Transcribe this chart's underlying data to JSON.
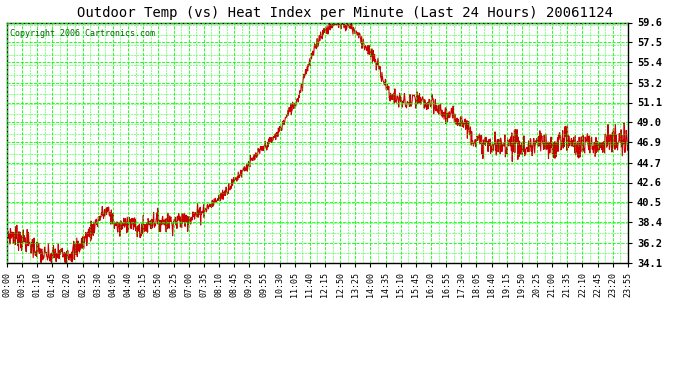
{
  "title": "Outdoor Temp (vs) Heat Index per Minute (Last 24 Hours) 20061124",
  "copyright": "Copyright 2006 Cartronics.com",
  "background_color": "#ffffff",
  "plot_bg_color": "#ffffff",
  "grid_color": "#00ff00",
  "line_color": "#cc0000",
  "text_color": "#000000",
  "ylim": [
    34.1,
    59.6
  ],
  "yticks": [
    34.1,
    36.2,
    38.4,
    40.5,
    42.6,
    44.7,
    46.9,
    49.0,
    51.1,
    53.2,
    55.4,
    57.5,
    59.6
  ],
  "x_labels": [
    "00:00",
    "00:35",
    "01:10",
    "01:45",
    "02:20",
    "02:55",
    "03:30",
    "04:05",
    "04:40",
    "05:15",
    "05:50",
    "06:25",
    "07:00",
    "07:35",
    "08:10",
    "08:45",
    "09:20",
    "09:55",
    "10:30",
    "11:05",
    "11:40",
    "12:15",
    "12:50",
    "13:25",
    "14:00",
    "14:35",
    "15:10",
    "15:45",
    "16:20",
    "16:55",
    "17:30",
    "18:05",
    "18:40",
    "19:15",
    "19:50",
    "20:25",
    "21:00",
    "21:35",
    "22:10",
    "22:45",
    "23:20",
    "23:55"
  ],
  "noise_seed": 7
}
